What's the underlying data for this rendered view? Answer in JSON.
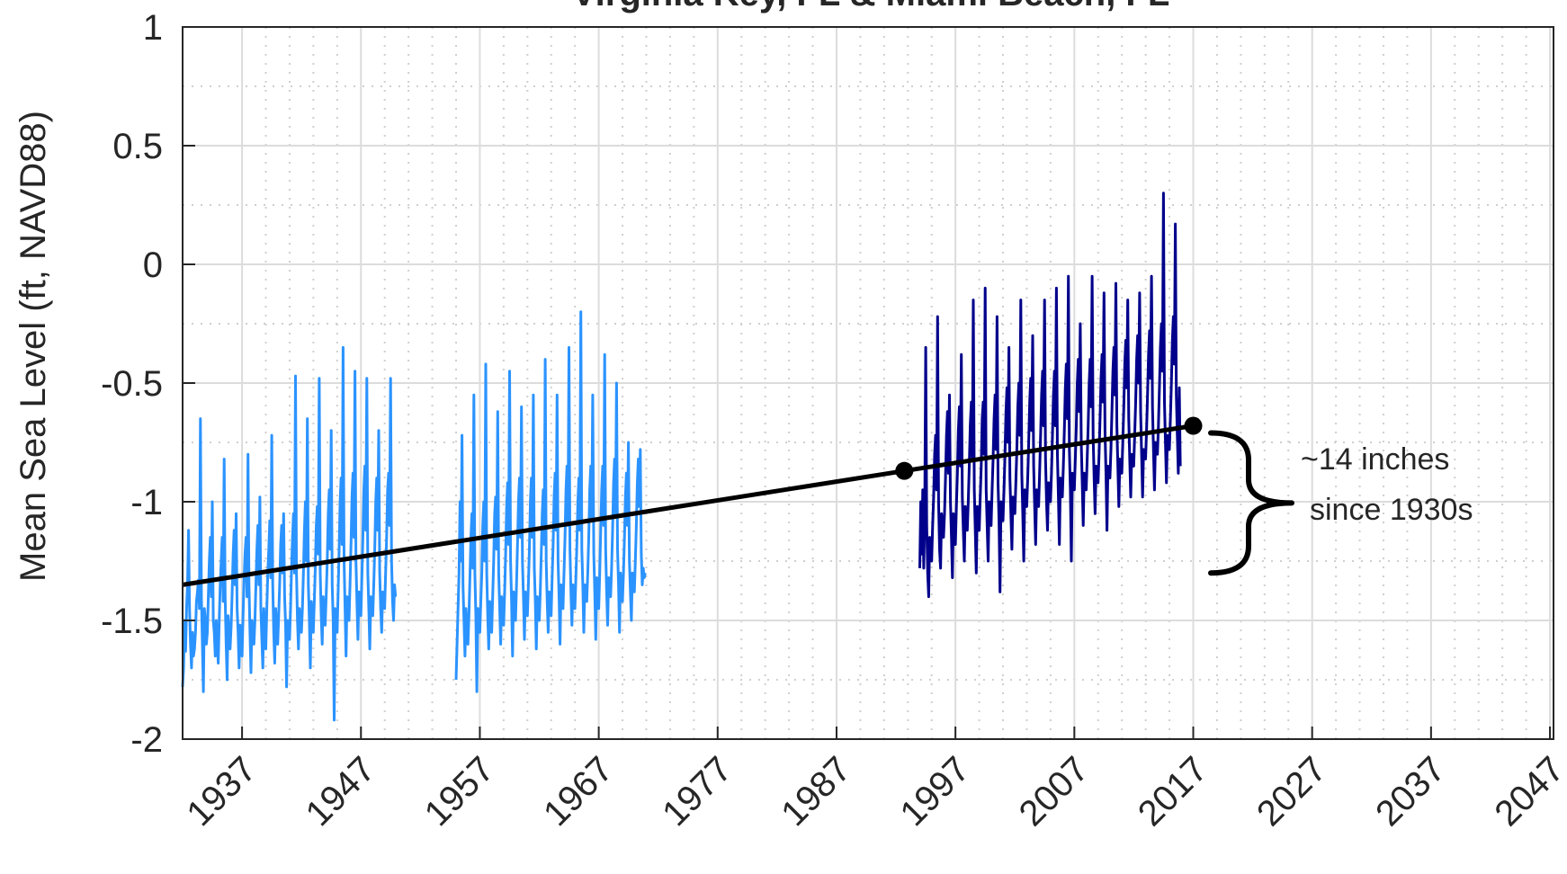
{
  "chart_data": {
    "type": "line",
    "title": "Virginia Key, FL & Miami Beach, FL",
    "ylabel": "Mean Sea Level (ft, NAVD88)",
    "xlabel": "",
    "xlim": [
      1932,
      2047.3
    ],
    "ylim": [
      -2,
      1
    ],
    "xticks": [
      "1937",
      "1947",
      "1957",
      "1967",
      "1977",
      "1987",
      "1997",
      "2007",
      "2017",
      "2027",
      "2037",
      "2047"
    ],
    "yticks": [
      "1",
      "0.5",
      "0",
      "-0.5",
      "-1",
      "-1.5",
      "-2"
    ],
    "ytick_values": [
      1,
      0.5,
      0,
      -0.5,
      -1,
      -1.5,
      -2
    ],
    "grid": true,
    "minor_grid": true,
    "series": [
      {
        "color": "#2b93ff",
        "kind": "monthly",
        "x_start": 1932.0,
        "x_step": 0.0833,
        "values": [
          -1.78,
          -1.7,
          -1.5,
          -1.63,
          -1.45,
          -1.35,
          -1.12,
          -1.45,
          -1.6,
          -1.7,
          -1.55,
          -1.65,
          -1.62,
          -1.55,
          -1.42,
          -1.38,
          -1.33,
          -1.45,
          -0.65,
          -1.4,
          -1.6,
          -1.8,
          -1.45,
          -1.5,
          -1.6,
          -1.55,
          -1.4,
          -1.25,
          -1.15,
          -1.4,
          -1.0,
          -1.5,
          -1.55,
          -1.65,
          -1.5,
          -1.58,
          -1.68,
          -1.5,
          -1.35,
          -1.25,
          -1.15,
          -1.42,
          -0.82,
          -1.4,
          -1.6,
          -1.75,
          -1.48,
          -1.55,
          -1.62,
          -1.52,
          -1.38,
          -1.22,
          -1.12,
          -1.35,
          -1.05,
          -1.45,
          -1.55,
          -1.7,
          -1.52,
          -1.57,
          -1.65,
          -1.48,
          -1.33,
          -1.22,
          -1.15,
          -1.4,
          -0.8,
          -1.35,
          -1.55,
          -1.72,
          -1.5,
          -1.58,
          -1.6,
          -1.5,
          -1.35,
          -1.2,
          -1.1,
          -1.35,
          -0.98,
          -1.45,
          -1.58,
          -1.7,
          -1.45,
          -1.55,
          -1.62,
          -1.45,
          -1.3,
          -1.2,
          -1.08,
          -1.32,
          -0.72,
          -1.35,
          -1.55,
          -1.68,
          -1.45,
          -1.52,
          -1.6,
          -1.48,
          -1.35,
          -1.18,
          -1.1,
          -1.3,
          -1.05,
          -1.4,
          -1.52,
          -1.78,
          -1.5,
          -1.55,
          -1.58,
          -1.45,
          -1.28,
          -1.15,
          -1.05,
          -1.3,
          -0.47,
          -1.3,
          -1.5,
          -1.62,
          -1.45,
          -1.5,
          -1.55,
          -1.45,
          -1.3,
          -1.12,
          -1.0,
          -1.25,
          -0.65,
          -1.35,
          -1.5,
          -1.7,
          -1.42,
          -1.5,
          -1.55,
          -1.42,
          -1.28,
          -1.1,
          -1.02,
          -1.22,
          -0.48,
          -1.3,
          -1.48,
          -1.6,
          -1.4,
          -1.48,
          -1.52,
          -1.4,
          -1.25,
          -1.05,
          -0.95,
          -1.2,
          -0.7,
          -1.35,
          -1.5,
          -1.92,
          -1.45,
          -1.48,
          -1.55,
          -1.38,
          -1.2,
          -1.0,
          -0.9,
          -1.18,
          -0.35,
          -1.25,
          -1.45,
          -1.65,
          -1.4,
          -1.45,
          -1.5,
          -1.35,
          -1.18,
          -0.98,
          -0.88,
          -1.15,
          -0.45,
          -1.25,
          -1.42,
          -1.58,
          -1.38,
          -1.45,
          -1.48,
          -1.32,
          -1.15,
          -0.95,
          -0.85,
          -1.12,
          -0.48,
          -1.3,
          -1.45,
          -1.62,
          -1.4,
          -1.42,
          -1.48,
          -1.35,
          -1.2,
          -1.0,
          -0.9,
          -1.12,
          -0.7,
          -1.3,
          -1.45,
          -1.55,
          -1.38,
          -1.42,
          -1.45,
          -1.3,
          -1.15,
          -0.95,
          -0.88,
          -1.1,
          -0.48,
          -1.25,
          -1.42,
          -1.5,
          -1.35,
          -1.4
        ]
      },
      {
        "color": "#2b93ff",
        "kind": "monthly",
        "x_start": 1955.0,
        "x_step": 0.0833,
        "values": [
          -1.75,
          -1.6,
          -1.45,
          -1.3,
          -1.0,
          -1.25,
          -0.72,
          -1.35,
          -1.5,
          -1.65,
          -1.45,
          -1.52,
          -1.6,
          -1.48,
          -1.32,
          -1.15,
          -1.05,
          -1.28,
          -0.55,
          -1.3,
          -1.48,
          -1.8,
          -1.45,
          -1.5,
          -1.55,
          -1.42,
          -1.3,
          -1.1,
          -1.0,
          -1.25,
          -0.42,
          -1.3,
          -1.48,
          -1.62,
          -1.42,
          -1.48,
          -1.55,
          -1.4,
          -1.25,
          -1.05,
          -0.98,
          -1.2,
          -0.62,
          -1.3,
          -1.45,
          -1.6,
          -1.4,
          -1.45,
          -1.52,
          -1.38,
          -1.22,
          -1.02,
          -0.92,
          -1.18,
          -0.45,
          -1.25,
          -1.42,
          -1.65,
          -1.38,
          -1.45,
          -1.5,
          -1.35,
          -1.18,
          -1.0,
          -0.9,
          -1.15,
          -0.6,
          -1.25,
          -1.4,
          -1.58,
          -1.38,
          -1.42,
          -1.48,
          -1.35,
          -1.2,
          -1.0,
          -0.9,
          -1.15,
          -0.55,
          -1.28,
          -1.42,
          -1.62,
          -1.4,
          -1.45,
          -1.5,
          -1.38,
          -1.22,
          -1.05,
          -0.95,
          -1.18,
          -0.4,
          -1.25,
          -1.42,
          -1.55,
          -1.38,
          -1.42,
          -1.48,
          -1.32,
          -1.18,
          -0.98,
          -0.88,
          -1.12,
          -0.55,
          -1.25,
          -1.4,
          -1.6,
          -1.35,
          -1.4,
          -1.45,
          -1.3,
          -1.15,
          -0.95,
          -0.85,
          -1.1,
          -0.35,
          -1.2,
          -1.38,
          -1.52,
          -1.35,
          -1.4,
          -1.45,
          -1.32,
          -1.18,
          -1.0,
          -0.9,
          -1.12,
          -0.2,
          -1.2,
          -1.35,
          -1.55,
          -1.35,
          -1.4,
          -1.42,
          -1.3,
          -1.15,
          -0.95,
          -0.85,
          -1.08,
          -0.55,
          -1.22,
          -1.38,
          -1.58,
          -1.32,
          -1.38,
          -1.45,
          -1.3,
          -1.12,
          -0.95,
          -0.85,
          -1.1,
          -0.38,
          -1.2,
          -1.38,
          -1.52,
          -1.32,
          -1.38,
          -1.4,
          -1.28,
          -1.12,
          -0.92,
          -0.82,
          -1.05,
          -0.5,
          -1.2,
          -1.35,
          -1.55,
          -1.3,
          -1.35,
          -1.42,
          -1.3,
          -1.15,
          -0.98,
          -0.88,
          -1.1,
          -0.75,
          -1.25,
          -1.38,
          -1.5,
          -1.3,
          -1.35,
          -1.38,
          -1.25,
          -1.1,
          -0.92,
          -0.82,
          -1.02,
          -0.78,
          -1.22,
          -1.35,
          -1.28,
          -1.32,
          -1.3
        ]
      },
      {
        "color": "#00008b",
        "kind": "monthly",
        "x_start": 1994.0,
        "x_step": 0.0833,
        "values": [
          -1.28,
          -1.0,
          -1.22,
          -0.95,
          -1.28,
          -1.05,
          -0.35,
          -1.1,
          -1.3,
          -1.4,
          -1.15,
          -1.2,
          -1.25,
          -1.1,
          -0.98,
          -0.8,
          -0.72,
          -0.95,
          -0.22,
          -1.0,
          -1.2,
          -1.28,
          -1.05,
          -1.1,
          -1.15,
          -1.05,
          -0.9,
          -0.72,
          -0.62,
          -0.88,
          -0.55,
          -1.0,
          -1.15,
          -1.32,
          -1.05,
          -1.1,
          -1.18,
          -1.02,
          -0.88,
          -0.7,
          -0.6,
          -0.85,
          -0.38,
          -0.98,
          -1.12,
          -1.25,
          -1.02,
          -1.08,
          -1.12,
          -1.0,
          -0.85,
          -0.68,
          -0.58,
          -0.82,
          -0.15,
          -0.95,
          -1.12,
          -1.3,
          -1.02,
          -1.08,
          -1.12,
          -0.98,
          -0.85,
          -0.65,
          -0.58,
          -0.8,
          -0.1,
          -0.95,
          -1.1,
          -1.25,
          -1.0,
          -1.05,
          -1.1,
          -0.95,
          -0.82,
          -0.65,
          -0.55,
          -0.78,
          -0.22,
          -0.92,
          -1.08,
          -1.38,
          -1.0,
          -1.05,
          -1.08,
          -0.95,
          -0.8,
          -0.62,
          -0.52,
          -0.75,
          -0.35,
          -0.9,
          -1.05,
          -1.2,
          -0.98,
          -1.02,
          -1.05,
          -0.92,
          -0.78,
          -0.6,
          -0.5,
          -0.72,
          -0.15,
          -0.88,
          -1.05,
          -1.25,
          -0.95,
          -1.0,
          -1.02,
          -0.9,
          -0.75,
          -0.58,
          -0.48,
          -0.7,
          -0.3,
          -0.85,
          -1.02,
          -1.18,
          -0.95,
          -1.0,
          -1.02,
          -0.88,
          -0.72,
          -0.55,
          -0.45,
          -0.68,
          -0.15,
          -0.82,
          -1.0,
          -1.12,
          -0.92,
          -0.98,
          -1.0,
          -0.88,
          -0.72,
          -0.55,
          -0.45,
          -0.68,
          -0.1,
          -0.8,
          -0.98,
          -1.18,
          -0.9,
          -0.95,
          -0.98,
          -0.85,
          -0.7,
          -0.52,
          -0.42,
          -0.65,
          -0.05,
          -0.78,
          -0.95,
          -1.25,
          -0.88,
          -0.92,
          -0.95,
          -0.82,
          -0.68,
          -0.5,
          -0.4,
          -0.62,
          -0.25,
          -0.75,
          -0.92,
          -1.1,
          -0.88,
          -0.92,
          -0.95,
          -0.82,
          -0.68,
          -0.5,
          -0.4,
          -0.6,
          -0.05,
          -0.72,
          -0.9,
          -1.05,
          -0.85,
          -0.9,
          -0.92,
          -0.8,
          -0.65,
          -0.48,
          -0.38,
          -0.58,
          -0.12,
          -0.7,
          -0.88,
          -1.12,
          -0.85,
          -0.88,
          -0.9,
          -0.78,
          -0.62,
          -0.45,
          -0.35,
          -0.55,
          -0.08,
          -0.68,
          -0.85,
          -1.02,
          -0.82,
          -0.85,
          -0.88,
          -0.75,
          -0.6,
          -0.42,
          -0.32,
          -0.52,
          -0.15,
          -0.65,
          -0.82,
          -0.98,
          -0.8,
          -0.82,
          -0.85,
          -0.72,
          -0.58,
          -0.4,
          -0.3,
          -0.5,
          -0.12,
          -0.62,
          -0.8,
          -0.98,
          -0.78,
          -0.8,
          -0.82,
          -0.7,
          -0.55,
          -0.38,
          -0.28,
          -0.48,
          -0.05,
          -0.6,
          -0.78,
          -0.95,
          -0.75,
          -0.78,
          -0.8,
          -0.68,
          -0.52,
          -0.35,
          -0.25,
          -0.45,
          0.3,
          -0.58,
          -0.75,
          -0.92,
          -0.72,
          -0.75,
          -0.78,
          -0.65,
          -0.5,
          -0.32,
          -0.22,
          -0.42,
          0.17,
          -0.55,
          -0.72,
          -0.88,
          -0.52,
          -0.85
        ]
      }
    ],
    "trend": {
      "color": "#000000",
      "x": [
        1932.0,
        1992.7,
        2017.0
      ],
      "y": [
        -1.35,
        -0.87,
        -0.68
      ],
      "markers": [
        [
          1992.7,
          -0.87
        ],
        [
          2017.0,
          -0.68
        ]
      ]
    },
    "bracket": {
      "y_top": -0.68,
      "y_bottom": -1.3
    },
    "annotation": {
      "line1": "~14 inches",
      "line2": "since 1930s"
    }
  }
}
